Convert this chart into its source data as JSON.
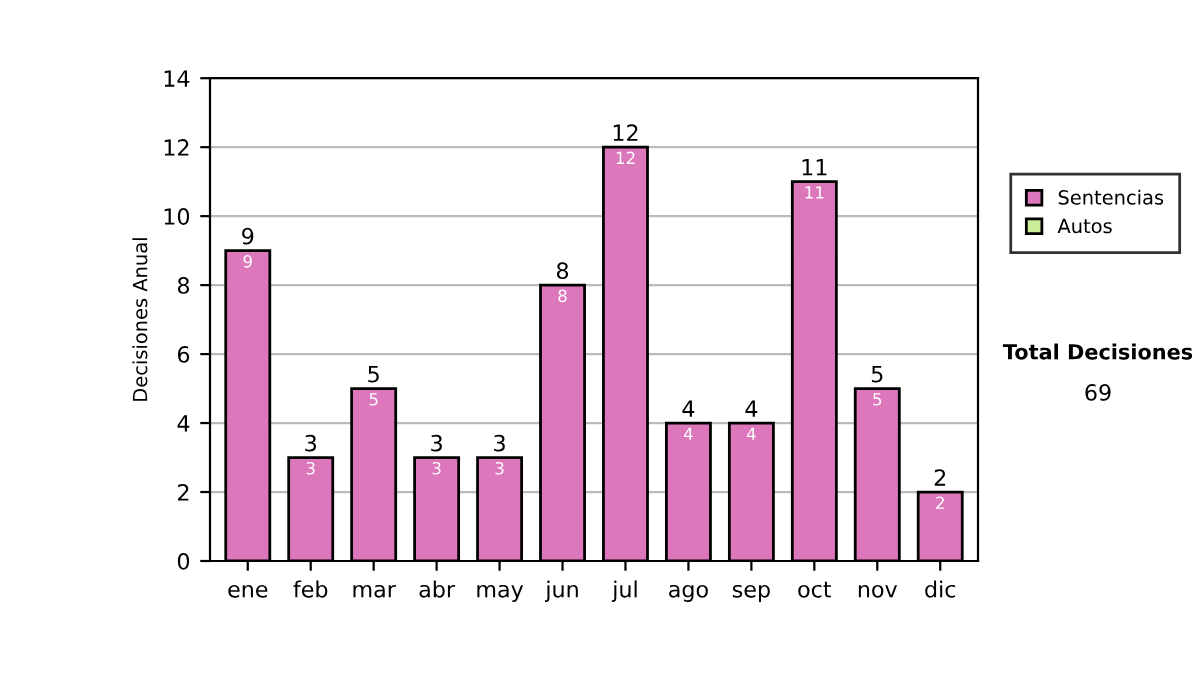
{
  "chart_data": {
    "type": "bar",
    "stacked": true,
    "ylabel": "Decisiones Anual",
    "categories": [
      "ene",
      "feb",
      "mar",
      "abr",
      "may",
      "jun",
      "jul",
      "ago",
      "sep",
      "oct",
      "nov",
      "dic"
    ],
    "series": [
      {
        "name": "Sentencias",
        "color": "#dd77bb",
        "values": [
          9,
          3,
          5,
          3,
          3,
          8,
          12,
          4,
          4,
          11,
          5,
          2
        ]
      },
      {
        "name": "Autos",
        "color": "#ccee99",
        "values": [
          null,
          null,
          null,
          null,
          null,
          null,
          null,
          null,
          null,
          null,
          null,
          null
        ]
      }
    ],
    "totals": [
      "9",
      "3",
      "5",
      "3",
      "3",
      "8",
      "12",
      "4",
      "4",
      "11",
      "5",
      "2"
    ],
    "data_labels": true,
    "ylim": [
      0,
      14
    ],
    "yticks": [
      0,
      2,
      4,
      6,
      8,
      10,
      12,
      14
    ],
    "grid": "y",
    "legend": "right",
    "annotations": [
      "Total Decisiones",
      "69"
    ]
  }
}
